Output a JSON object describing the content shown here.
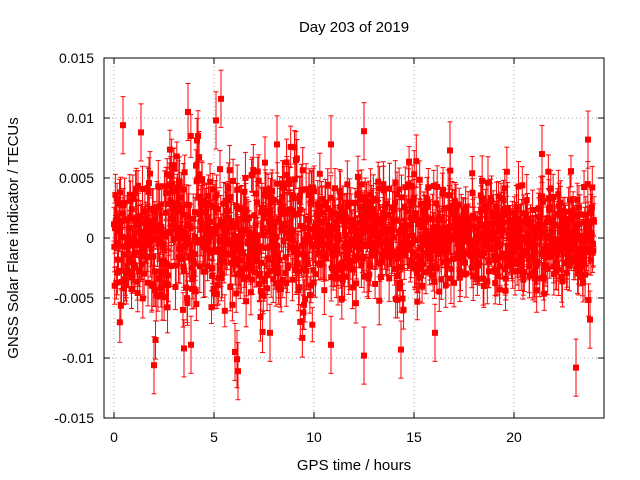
{
  "chart_data": {
    "type": "scatter",
    "title": "Day 203 of 2019",
    "xlabel": "GPS time / hours",
    "ylabel": "GNSS Solar Flare indicator / TECUs",
    "xlim": [
      -0.5,
      24.5
    ],
    "ylim": [
      -0.015,
      0.015
    ],
    "xticks": [
      0,
      5,
      10,
      15,
      20
    ],
    "xtick_labels": [
      "0",
      "5",
      "10",
      "15",
      "20"
    ],
    "yticks": [
      -0.015,
      -0.01,
      -0.005,
      0,
      0.005,
      0.01,
      0.015
    ],
    "ytick_labels": [
      "-0.015",
      "-0.01",
      "-0.005",
      "0",
      "0.005",
      "0.01",
      "0.015"
    ],
    "grid": true,
    "legend": "none",
    "series_color": "#ff0000",
    "x_range_of_data": [
      0,
      24
    ],
    "approx_spread": {
      "typical_std": 0.0025,
      "error_bar_halfwidth": 0.0017
    },
    "notable_points": [
      {
        "x": 0.45,
        "y": 0.0094
      },
      {
        "x": 1.35,
        "y": 0.0088
      },
      {
        "x": 2.0,
        "y": -0.0106
      },
      {
        "x": 3.7,
        "y": 0.0105
      },
      {
        "x": 3.5,
        "y": -0.0092
      },
      {
        "x": 3.85,
        "y": -0.0089
      },
      {
        "x": 5.35,
        "y": 0.0116
      },
      {
        "x": 5.1,
        "y": 0.0098
      },
      {
        "x": 6.15,
        "y": -0.0101
      },
      {
        "x": 6.2,
        "y": -0.0111
      },
      {
        "x": 6.05,
        "y": -0.0095
      },
      {
        "x": 7.8,
        "y": -0.0079
      },
      {
        "x": 8.15,
        "y": 0.0078
      },
      {
        "x": 9.1,
        "y": 0.0065
      },
      {
        "x": 10.85,
        "y": 0.0078
      },
      {
        "x": 10.85,
        "y": -0.0089
      },
      {
        "x": 12.5,
        "y": 0.0089
      },
      {
        "x": 12.5,
        "y": -0.0098
      },
      {
        "x": 14.35,
        "y": -0.0093
      },
      {
        "x": 16.05,
        "y": -0.0079
      },
      {
        "x": 16.8,
        "y": 0.0073
      },
      {
        "x": 21.4,
        "y": 0.007
      },
      {
        "x": 23.1,
        "y": -0.0108
      },
      {
        "x": 23.7,
        "y": 0.0082
      },
      {
        "x": 23.8,
        "y": -0.0068
      }
    ]
  }
}
